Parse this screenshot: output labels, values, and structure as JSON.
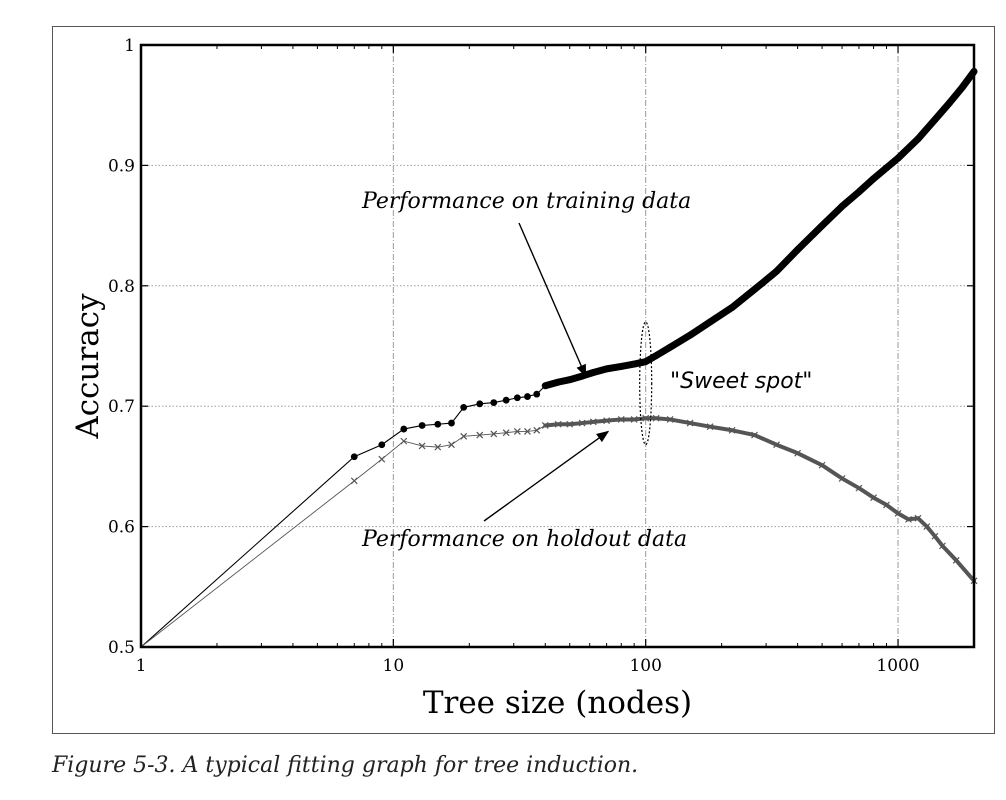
{
  "caption": "Figure 5-3. A typical fitting graph for tree induction.",
  "chart_data": {
    "type": "line",
    "xlabel": "Tree size (nodes)",
    "ylabel": "Accuracy",
    "x_scale": "log",
    "xlim": [
      1,
      2000
    ],
    "ylim": [
      0.5,
      1.0
    ],
    "x_ticks": [
      1,
      10,
      100,
      1000
    ],
    "x_tick_labels": [
      "1",
      "10",
      "100",
      "1000"
    ],
    "y_ticks": [
      0.5,
      0.6,
      0.7,
      0.8,
      0.9,
      1.0
    ],
    "y_tick_labels": [
      "0.5",
      "0.6",
      "0.7",
      "0.8",
      "0.9",
      "1"
    ],
    "grid": true,
    "legend": "none",
    "series": [
      {
        "marker": "dot",
        "color": "#000000",
        "x": [
          1,
          7,
          9,
          11,
          13,
          15,
          17,
          19,
          22,
          25,
          28,
          31,
          34,
          37,
          40,
          45,
          50,
          56,
          62,
          70,
          80,
          90,
          100,
          110,
          125,
          150,
          180,
          220,
          270,
          330,
          400,
          500,
          600,
          700,
          800,
          900,
          1000,
          1200,
          1400,
          1600,
          1800,
          2000
        ],
        "y": [
          0.5,
          0.658,
          0.668,
          0.681,
          0.684,
          0.685,
          0.686,
          0.699,
          0.702,
          0.703,
          0.705,
          0.707,
          0.708,
          0.71,
          0.717,
          0.72,
          0.722,
          0.725,
          0.728,
          0.731,
          0.733,
          0.735,
          0.737,
          0.742,
          0.749,
          0.759,
          0.77,
          0.782,
          0.797,
          0.812,
          0.83,
          0.85,
          0.866,
          0.878,
          0.889,
          0.898,
          0.906,
          0.922,
          0.938,
          0.952,
          0.965,
          0.978
        ]
      },
      {
        "marker": "x",
        "color": "#555555",
        "x": [
          1,
          7,
          9,
          11,
          13,
          15,
          17,
          19,
          22,
          25,
          28,
          31,
          34,
          37,
          40,
          45,
          50,
          56,
          62,
          70,
          80,
          90,
          100,
          110,
          125,
          150,
          180,
          220,
          270,
          330,
          400,
          500,
          600,
          700,
          800,
          900,
          1000,
          1100,
          1200,
          1300,
          1400,
          1500,
          1700,
          2000
        ],
        "y": [
          0.5,
          0.638,
          0.656,
          0.671,
          0.667,
          0.666,
          0.668,
          0.675,
          0.676,
          0.677,
          0.678,
          0.679,
          0.679,
          0.68,
          0.684,
          0.685,
          0.685,
          0.686,
          0.687,
          0.688,
          0.689,
          0.689,
          0.69,
          0.69,
          0.689,
          0.686,
          0.683,
          0.68,
          0.676,
          0.668,
          0.661,
          0.651,
          0.64,
          0.632,
          0.624,
          0.618,
          0.611,
          0.606,
          0.607,
          0.6,
          0.592,
          0.584,
          0.572,
          0.555
        ]
      }
    ],
    "annotations": {
      "training_label": "Performance on training data",
      "holdout_label": "Performance on holdout data",
      "sweet_spot_label": "\"Sweet spot\"",
      "sweet_spot_x": 100,
      "sweet_spot_y_range": [
        0.668,
        0.77
      ],
      "training_arrow_target": {
        "x": 60,
        "y": 0.72
      },
      "holdout_arrow_target": {
        "x": 75,
        "y": 0.684
      }
    }
  }
}
